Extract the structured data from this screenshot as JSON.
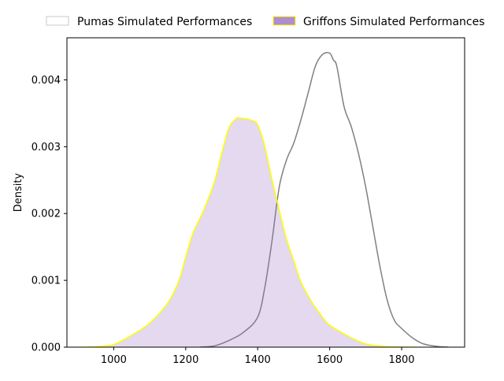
{
  "chart_data": {
    "type": "area",
    "title": "",
    "xlabel": "",
    "ylabel": "Density",
    "xlim": [
      870,
      1975
    ],
    "ylim": [
      0,
      0.00463
    ],
    "x_ticks": [
      1000,
      1200,
      1400,
      1600,
      1800
    ],
    "y_ticks": [
      0,
      0.001,
      0.002,
      0.003,
      0.004
    ],
    "x_tick_labels": [
      "1000",
      "1200",
      "1400",
      "1600",
      "1800"
    ],
    "y_tick_labels": [
      "0.000",
      "0.001",
      "0.002",
      "0.003",
      "0.004"
    ],
    "grid": false,
    "legend_placement": "top",
    "series": [
      {
        "name": "Pumas Simulated Performances",
        "style": "line",
        "line_color": "#808080",
        "fill_color": "none",
        "x": [
          1240,
          1280,
          1320,
          1360,
          1400,
          1420,
          1440,
          1460,
          1480,
          1500,
          1520,
          1540,
          1560,
          1580,
          1600,
          1610,
          1620,
          1640,
          1660,
          1680,
          1700,
          1720,
          1740,
          1760,
          1780,
          1800,
          1830,
          1860,
          1900,
          1930
        ],
        "y": [
          0.0,
          2e-05,
          0.0001,
          0.00022,
          0.00045,
          0.0009,
          0.0016,
          0.0024,
          0.0028,
          0.00305,
          0.0034,
          0.0038,
          0.0042,
          0.00438,
          0.0044,
          0.0043,
          0.0042,
          0.0036,
          0.0033,
          0.0029,
          0.0024,
          0.0018,
          0.0012,
          0.0007,
          0.0004,
          0.00028,
          0.00014,
          5e-05,
          1e-05,
          0.0
        ]
      },
      {
        "name": "Griffons Simulated Performances",
        "style": "filled",
        "line_color": "#ffff00",
        "fill_color": "#9467bd",
        "x": [
          900,
          950,
          1000,
          1050,
          1100,
          1150,
          1180,
          1200,
          1220,
          1250,
          1280,
          1300,
          1320,
          1340,
          1350,
          1380,
          1400,
          1420,
          1440,
          1460,
          1480,
          1500,
          1520,
          1550,
          1580,
          1600,
          1650,
          1700,
          1750,
          1800,
          1840
        ],
        "y": [
          0.0,
          5e-06,
          4e-05,
          0.00018,
          0.00036,
          0.00066,
          0.00098,
          0.00135,
          0.0017,
          0.00205,
          0.00248,
          0.0029,
          0.00328,
          0.00342,
          0.00343,
          0.0034,
          0.00333,
          0.003,
          0.0025,
          0.00205,
          0.00162,
          0.0013,
          0.00098,
          0.00068,
          0.00045,
          0.00033,
          0.00017,
          5e-05,
          1e-05,
          2e-06,
          0.0
        ]
      }
    ]
  }
}
